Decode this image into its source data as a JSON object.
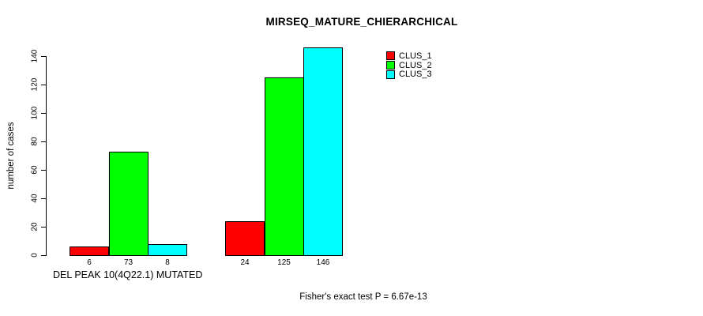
{
  "chart_data": {
    "type": "bar",
    "title": "MIRSEQ_MATURE_CHIERARCHICAL",
    "ylabel": "number of cases",
    "xlabel": "DEL PEAK 10(4Q22.1) MUTATED",
    "annotation": "Fisher's exact test P = 6.67e-13",
    "ylim": [
      0,
      140
    ],
    "yticks": [
      0,
      20,
      40,
      60,
      80,
      100,
      120,
      140
    ],
    "grid": false,
    "legend_position": "top-right",
    "categories": [
      "",
      ""
    ],
    "series": [
      {
        "name": "CLUS_1",
        "color": "#FF0000",
        "values": [
          6,
          24
        ]
      },
      {
        "name": "CLUS_2",
        "color": "#00FF00",
        "values": [
          73,
          125
        ]
      },
      {
        "name": "CLUS_3",
        "color": "#00FFFF",
        "values": [
          8,
          146
        ]
      }
    ],
    "bar_value_labels": [
      [
        "6",
        "73",
        "8"
      ],
      [
        "24",
        "125",
        "146"
      ]
    ],
    "axis_color": "#000000",
    "background_color": "#FFFFFF"
  }
}
